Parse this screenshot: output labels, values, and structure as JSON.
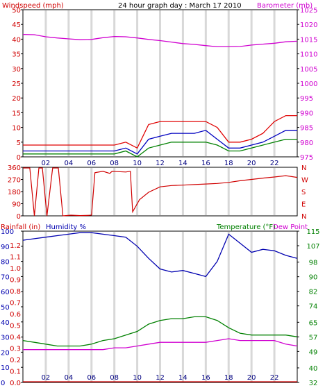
{
  "chart_data": [
    {
      "id": "wind-baro",
      "type": "line",
      "title": "24 hour graph day : March 17 2010",
      "left_label": "Windspeed (mph)",
      "right_label": "Barometer (mb)",
      "left_ticks": [
        "0",
        "5",
        "10",
        "15",
        "20",
        "25",
        "30",
        "35",
        "40",
        "45",
        "50"
      ],
      "right_ticks": [
        "975",
        "980",
        "985",
        "990",
        "995",
        "1000",
        "1005",
        "1010",
        "1015",
        "1020",
        "1025"
      ],
      "ylim_left": [
        0,
        50
      ],
      "ylim_right": [
        975,
        1025
      ],
      "x_ticks": [
        "02",
        "04",
        "06",
        "08",
        "10",
        "12",
        "14",
        "16",
        "18",
        "20",
        "22"
      ],
      "xlim_hours": [
        0,
        24
      ],
      "series": [
        {
          "name": "",
          "axis": "right",
          "color": "#d000d0",
          "x": [
            0,
            1,
            2,
            3,
            4,
            5,
            6,
            7,
            8,
            9,
            10,
            11,
            12,
            13,
            14,
            15,
            16,
            17,
            18,
            19,
            20,
            21,
            22,
            23,
            24
          ],
          "values": [
            1016.6,
            1016.5,
            1015.8,
            1015.4,
            1015.1,
            1014.8,
            1014.9,
            1015.5,
            1015.9,
            1015.8,
            1015.4,
            1014.9,
            1014.5,
            1014.0,
            1013.5,
            1013.2,
            1012.8,
            1012.4,
            1012.4,
            1012.5,
            1013.0,
            1013.3,
            1013.6,
            1014.1,
            1014.3
          ]
        },
        {
          "name": "",
          "axis": "left",
          "color": "#e00000",
          "x": [
            0,
            1,
            2,
            3,
            4,
            5,
            6,
            7,
            8,
            9,
            10,
            11,
            12,
            13,
            14,
            15,
            16,
            17,
            18,
            19,
            20,
            21,
            22,
            23,
            24
          ],
          "values": [
            4,
            4,
            4,
            4,
            4,
            4,
            4,
            4,
            4,
            5,
            3,
            11,
            12,
            12,
            12,
            12,
            12,
            10,
            5,
            5,
            6,
            8,
            12,
            14,
            14
          ]
        },
        {
          "name": "",
          "axis": "left",
          "color": "#0000c0",
          "x": [
            0,
            1,
            2,
            3,
            4,
            5,
            6,
            7,
            8,
            9,
            10,
            11,
            12,
            13,
            14,
            15,
            16,
            17,
            18,
            19,
            20,
            21,
            22,
            23,
            24
          ],
          "values": [
            2,
            2,
            2,
            2,
            2,
            2,
            2,
            2,
            2,
            3,
            1,
            6,
            7,
            8,
            8,
            8,
            9,
            6,
            3,
            3,
            4,
            5,
            7,
            9,
            9
          ]
        },
        {
          "name": "",
          "axis": "left",
          "color": "#008000",
          "x": [
            0,
            1,
            2,
            3,
            4,
            5,
            6,
            7,
            8,
            9,
            10,
            11,
            12,
            13,
            14,
            15,
            16,
            17,
            18,
            19,
            20,
            21,
            22,
            23,
            24
          ],
          "values": [
            1,
            1,
            1,
            1,
            1,
            1,
            1,
            1,
            1,
            2,
            0,
            3,
            4,
            5,
            5,
            5,
            5,
            4,
            2,
            2,
            3,
            4,
            5,
            6,
            6
          ]
        }
      ]
    },
    {
      "id": "wind-dir",
      "type": "line",
      "left_ticks": [
        "0",
        "90",
        "180",
        "270",
        "360"
      ],
      "right_ticks": [
        "N",
        "E",
        "S",
        "W",
        "N"
      ],
      "ylim_left": [
        0,
        360
      ],
      "xlim_hours": [
        0,
        24
      ],
      "series": [
        {
          "name": "",
          "color": "#d00000",
          "x": [
            0,
            0.6,
            1,
            1.4,
            1.7,
            2.1,
            2.6,
            3.1,
            3.5,
            4.2,
            5,
            5.8,
            6,
            6.3,
            7,
            7.6,
            7.8,
            8.2,
            9,
            9.4,
            9.6,
            10.2,
            11,
            12,
            13,
            14,
            15,
            16,
            17,
            18,
            19,
            20,
            21,
            22,
            23,
            24
          ],
          "values": [
            355,
            355,
            0,
            355,
            355,
            0,
            355,
            355,
            0,
            5,
            2,
            4,
            6,
            320,
            330,
            315,
            330,
            328,
            325,
            330,
            30,
            120,
            175,
            215,
            225,
            228,
            232,
            236,
            240,
            248,
            260,
            270,
            280,
            288,
            298,
            285
          ]
        }
      ]
    },
    {
      "id": "rain-hum-temp",
      "type": "line",
      "left_label_1": "Rainfall (in)",
      "left_label_2": "Humidity %",
      "right_label_1": "Temperature (°F)",
      "right_label_2": "Dew Point",
      "humidity_ticks": [
        "0",
        "10",
        "20",
        "30",
        "40",
        "50",
        "60",
        "70",
        "80",
        "90",
        "100"
      ],
      "rain_ticks": [
        "0.0",
        "0.1",
        "0.2",
        "0.3",
        "0.4",
        "0.5",
        "0.6",
        "0.7",
        "0.8",
        "0.9",
        "1.0",
        "1.1",
        "1.2"
      ],
      "temp_ticks": [
        "32",
        "40",
        "49",
        "57",
        "65",
        "74",
        "82",
        "90",
        "98",
        "107",
        "115"
      ],
      "ylim_humidity": [
        0,
        100
      ],
      "ylim_temp": [
        32,
        115
      ],
      "xlim_hours": [
        0,
        24
      ],
      "x_ticks": [
        "02",
        "04",
        "06",
        "08",
        "10",
        "12",
        "14",
        "16",
        "18",
        "20",
        "22"
      ],
      "series": [
        {
          "name": "Humidity %",
          "axis": "humidity",
          "color": "#0000b0",
          "x": [
            0,
            1,
            2,
            3,
            4,
            5,
            6,
            7,
            8,
            9,
            10,
            11,
            12,
            13,
            14,
            15,
            16,
            17,
            18,
            19,
            20,
            21,
            22,
            23,
            24
          ],
          "values": [
            94,
            95,
            96,
            97,
            98,
            99,
            99,
            98,
            97,
            96,
            90,
            82,
            75,
            73,
            74,
            72,
            70,
            80,
            98,
            92,
            86,
            88,
            87,
            84,
            82
          ]
        },
        {
          "name": "Temperature (°F)",
          "axis": "temp",
          "color": "#008000",
          "x": [
            0,
            1,
            2,
            3,
            4,
            5,
            6,
            7,
            8,
            9,
            10,
            11,
            12,
            13,
            14,
            15,
            16,
            17,
            18,
            19,
            20,
            21,
            22,
            23,
            24
          ],
          "values": [
            55,
            54,
            53,
            52,
            52,
            52,
            53,
            55,
            56,
            58,
            60,
            64,
            66,
            67,
            67,
            68,
            68,
            66,
            62,
            59,
            58,
            58,
            58,
            58,
            57
          ]
        },
        {
          "name": "Dew Point",
          "axis": "temp",
          "color": "#d000d0",
          "x": [
            0,
            1,
            2,
            3,
            4,
            5,
            6,
            7,
            8,
            9,
            10,
            11,
            12,
            13,
            14,
            15,
            16,
            17,
            18,
            19,
            20,
            21,
            22,
            23,
            24
          ],
          "values": [
            50,
            50,
            50,
            50,
            50,
            50,
            50,
            50,
            51,
            51,
            52,
            53,
            54,
            54,
            54,
            54,
            54,
            55,
            56,
            55,
            55,
            55,
            55,
            53,
            52
          ]
        },
        {
          "name": "Rainfall (in)",
          "axis": "rain",
          "color": "#d00000",
          "x": [
            0,
            24
          ],
          "values": [
            0,
            0
          ]
        }
      ]
    }
  ]
}
